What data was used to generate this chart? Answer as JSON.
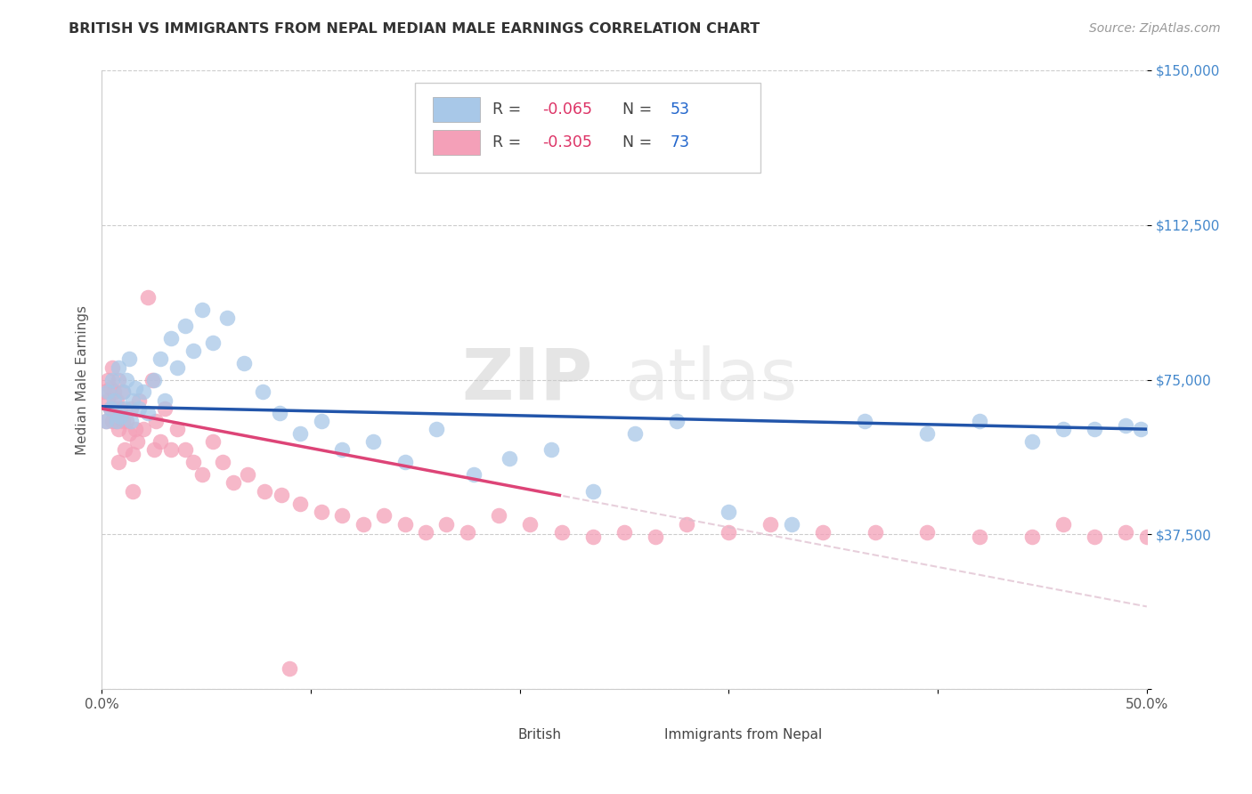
{
  "title": "BRITISH VS IMMIGRANTS FROM NEPAL MEDIAN MALE EARNINGS CORRELATION CHART",
  "source": "Source: ZipAtlas.com",
  "ylabel": "Median Male Earnings",
  "xlim": [
    0,
    0.5
  ],
  "ylim": [
    0,
    150000
  ],
  "yticks": [
    0,
    37500,
    75000,
    112500,
    150000
  ],
  "ytick_labels": [
    "",
    "$37,500",
    "$75,000",
    "$112,500",
    "$150,000"
  ],
  "xticks": [
    0.0,
    0.1,
    0.2,
    0.3,
    0.4,
    0.5
  ],
  "xtick_labels": [
    "0.0%",
    "",
    "",
    "",
    "",
    "50.0%"
  ],
  "british_R": -0.065,
  "british_N": 53,
  "nepal_R": -0.305,
  "nepal_N": 73,
  "british_color": "#a8c8e8",
  "nepal_color": "#f4a0b8",
  "british_line_color": "#2255aa",
  "nepal_line_color": "#dd4477",
  "watermark": "ZIPatlas",
  "british_x": [
    0.002,
    0.003,
    0.004,
    0.005,
    0.006,
    0.007,
    0.008,
    0.009,
    0.01,
    0.011,
    0.012,
    0.013,
    0.014,
    0.015,
    0.016,
    0.018,
    0.02,
    0.022,
    0.025,
    0.028,
    0.03,
    0.033,
    0.036,
    0.04,
    0.044,
    0.048,
    0.053,
    0.06,
    0.068,
    0.077,
    0.085,
    0.095,
    0.105,
    0.115,
    0.13,
    0.145,
    0.16,
    0.178,
    0.195,
    0.215,
    0.235,
    0.255,
    0.275,
    0.3,
    0.33,
    0.365,
    0.395,
    0.42,
    0.445,
    0.46,
    0.475,
    0.49,
    0.497
  ],
  "british_y": [
    65000,
    72000,
    68000,
    75000,
    70000,
    65000,
    78000,
    66000,
    72000,
    68000,
    75000,
    80000,
    65000,
    70000,
    73000,
    68000,
    72000,
    67000,
    75000,
    80000,
    70000,
    85000,
    78000,
    88000,
    82000,
    92000,
    84000,
    90000,
    79000,
    72000,
    67000,
    62000,
    65000,
    58000,
    60000,
    55000,
    63000,
    52000,
    56000,
    58000,
    48000,
    62000,
    65000,
    43000,
    40000,
    65000,
    62000,
    65000,
    60000,
    63000,
    63000,
    64000,
    63000
  ],
  "nepal_x": [
    0.001,
    0.002,
    0.003,
    0.003,
    0.004,
    0.004,
    0.005,
    0.005,
    0.006,
    0.006,
    0.007,
    0.007,
    0.008,
    0.008,
    0.009,
    0.01,
    0.01,
    0.011,
    0.012,
    0.013,
    0.014,
    0.015,
    0.016,
    0.017,
    0.018,
    0.02,
    0.022,
    0.024,
    0.026,
    0.028,
    0.03,
    0.033,
    0.036,
    0.04,
    0.044,
    0.048,
    0.053,
    0.058,
    0.063,
    0.07,
    0.078,
    0.086,
    0.095,
    0.105,
    0.115,
    0.125,
    0.135,
    0.145,
    0.155,
    0.165,
    0.175,
    0.19,
    0.205,
    0.22,
    0.235,
    0.25,
    0.265,
    0.28,
    0.3,
    0.32,
    0.345,
    0.37,
    0.395,
    0.42,
    0.445,
    0.46,
    0.475,
    0.49,
    0.5,
    0.015,
    0.008,
    0.025,
    0.09
  ],
  "nepal_y": [
    72000,
    65000,
    75000,
    70000,
    68000,
    73000,
    78000,
    65000,
    72000,
    68000,
    65000,
    70000,
    75000,
    63000,
    68000,
    65000,
    72000,
    58000,
    65000,
    62000,
    68000,
    57000,
    63000,
    60000,
    70000,
    63000,
    95000,
    75000,
    65000,
    60000,
    68000,
    58000,
    63000,
    58000,
    55000,
    52000,
    60000,
    55000,
    50000,
    52000,
    48000,
    47000,
    45000,
    43000,
    42000,
    40000,
    42000,
    40000,
    38000,
    40000,
    38000,
    42000,
    40000,
    38000,
    37000,
    38000,
    37000,
    40000,
    38000,
    40000,
    38000,
    38000,
    38000,
    37000,
    37000,
    40000,
    37000,
    38000,
    37000,
    48000,
    55000,
    58000,
    5000
  ]
}
